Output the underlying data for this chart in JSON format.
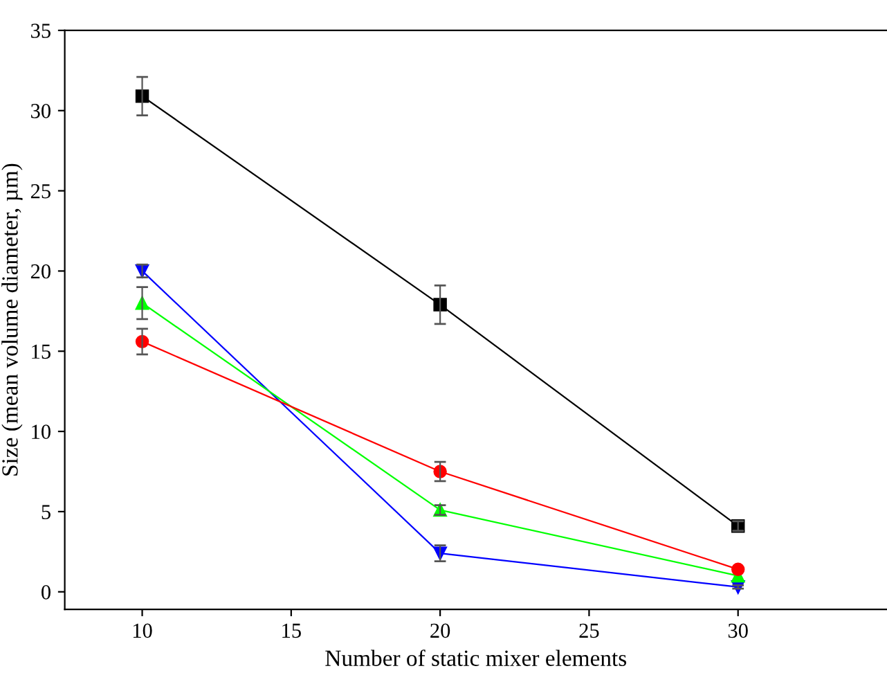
{
  "chart_data": {
    "type": "line",
    "xlabel": "Number of static mixer elements",
    "ylabel": "Size (mean volume diameter, µm)",
    "x": [
      10,
      20,
      30
    ],
    "series": [
      {
        "color": "#000000",
        "marker": "square",
        "values": [
          30.9,
          17.9,
          4.1
        ],
        "errors": [
          1.2,
          1.2,
          0.3
        ]
      },
      {
        "color": "#ff0000",
        "marker": "circle",
        "values": [
          15.6,
          7.5,
          1.4
        ],
        "errors": [
          0.8,
          0.6,
          null
        ]
      },
      {
        "color": "#00ff00",
        "marker": "triangle",
        "values": [
          18.0,
          5.1,
          1.0
        ],
        "errors": [
          1.0,
          0.3,
          null
        ]
      },
      {
        "color": "#0000ff",
        "marker": "triangle_down",
        "values": [
          20.0,
          2.4,
          0.3
        ],
        "errors": [
          0.4,
          0.5,
          0.1
        ]
      }
    ],
    "xlim": [
      7.4,
      35
    ],
    "ylim": [
      -1.1,
      35
    ],
    "xticks": [
      10,
      15,
      20,
      25,
      30
    ],
    "yticks": [
      0,
      5,
      10,
      15,
      20,
      25,
      30,
      35
    ],
    "grid": false,
    "legend": false,
    "line_style": "solid"
  }
}
